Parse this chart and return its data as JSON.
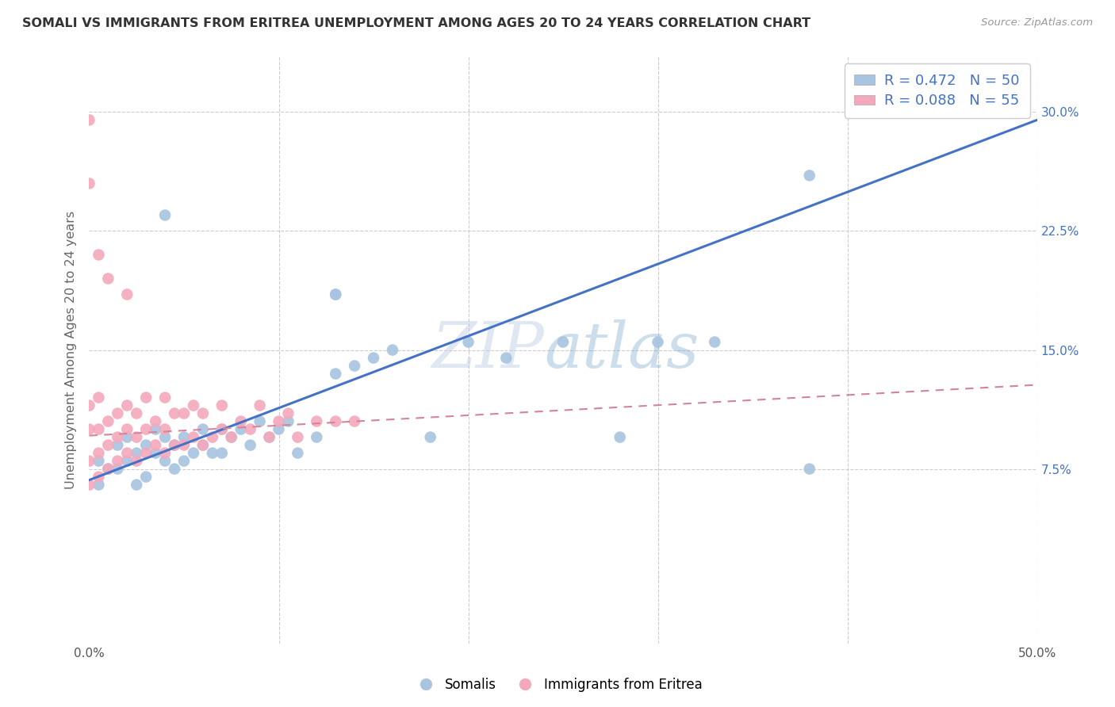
{
  "title": "SOMALI VS IMMIGRANTS FROM ERITREA UNEMPLOYMENT AMONG AGES 20 TO 24 YEARS CORRELATION CHART",
  "source": "Source: ZipAtlas.com",
  "ylabel": "Unemployment Among Ages 20 to 24 years",
  "xlim": [
    0,
    0.5
  ],
  "ylim": [
    -0.035,
    0.335
  ],
  "somali_R": 0.472,
  "somali_N": 50,
  "eritrea_R": 0.088,
  "eritrea_N": 55,
  "somali_color": "#a8c4e0",
  "eritrea_color": "#f4a8bc",
  "somali_line_color": "#4472c4",
  "eritrea_line_color": "#d4849a",
  "legend_label_1": "Somalis",
  "legend_label_2": "Immigrants from Eritrea",
  "ytick_vals": [
    0.0,
    0.075,
    0.15,
    0.225,
    0.3
  ],
  "xtick_vals": [
    0.0,
    0.1,
    0.2,
    0.3,
    0.4,
    0.5
  ],
  "somali_x": [
    0.005,
    0.005,
    0.01,
    0.015,
    0.015,
    0.02,
    0.02,
    0.025,
    0.025,
    0.03,
    0.03,
    0.035,
    0.035,
    0.04,
    0.04,
    0.045,
    0.045,
    0.05,
    0.05,
    0.055,
    0.06,
    0.06,
    0.065,
    0.07,
    0.07,
    0.075,
    0.08,
    0.085,
    0.09,
    0.095,
    0.1,
    0.105,
    0.11,
    0.12,
    0.13,
    0.14,
    0.15,
    0.16,
    0.18,
    0.2,
    0.22,
    0.25,
    0.28,
    0.3,
    0.33,
    0.38,
    0.04,
    0.13,
    0.13,
    0.38
  ],
  "somali_y": [
    0.065,
    0.08,
    0.075,
    0.09,
    0.075,
    0.08,
    0.095,
    0.065,
    0.085,
    0.09,
    0.07,
    0.085,
    0.1,
    0.08,
    0.095,
    0.075,
    0.09,
    0.08,
    0.095,
    0.085,
    0.09,
    0.1,
    0.085,
    0.1,
    0.085,
    0.095,
    0.1,
    0.09,
    0.105,
    0.095,
    0.1,
    0.105,
    0.085,
    0.095,
    0.135,
    0.14,
    0.145,
    0.15,
    0.095,
    0.155,
    0.145,
    0.155,
    0.095,
    0.155,
    0.155,
    0.26,
    0.235,
    0.185,
    0.185,
    0.075
  ],
  "eritrea_x": [
    0.0,
    0.0,
    0.0,
    0.0,
    0.005,
    0.005,
    0.005,
    0.005,
    0.01,
    0.01,
    0.01,
    0.015,
    0.015,
    0.015,
    0.02,
    0.02,
    0.02,
    0.025,
    0.025,
    0.025,
    0.03,
    0.03,
    0.03,
    0.035,
    0.035,
    0.04,
    0.04,
    0.04,
    0.045,
    0.045,
    0.05,
    0.05,
    0.055,
    0.055,
    0.06,
    0.06,
    0.065,
    0.07,
    0.07,
    0.075,
    0.08,
    0.085,
    0.09,
    0.095,
    0.1,
    0.105,
    0.11,
    0.12,
    0.13,
    0.14,
    0.0,
    0.0,
    0.005,
    0.01,
    0.02
  ],
  "eritrea_y": [
    0.065,
    0.08,
    0.1,
    0.115,
    0.07,
    0.085,
    0.1,
    0.12,
    0.075,
    0.09,
    0.105,
    0.08,
    0.095,
    0.11,
    0.085,
    0.1,
    0.115,
    0.08,
    0.095,
    0.11,
    0.085,
    0.1,
    0.12,
    0.09,
    0.105,
    0.085,
    0.1,
    0.12,
    0.09,
    0.11,
    0.09,
    0.11,
    0.095,
    0.115,
    0.09,
    0.11,
    0.095,
    0.1,
    0.115,
    0.095,
    0.105,
    0.1,
    0.115,
    0.095,
    0.105,
    0.11,
    0.095,
    0.105,
    0.105,
    0.105,
    0.295,
    0.255,
    0.21,
    0.195,
    0.185
  ],
  "somali_line_x": [
    0.0,
    0.5
  ],
  "somali_line_y": [
    0.068,
    0.295
  ],
  "eritrea_line_x": [
    0.0,
    0.15
  ],
  "eritrea_line_y": [
    0.098,
    0.118
  ]
}
